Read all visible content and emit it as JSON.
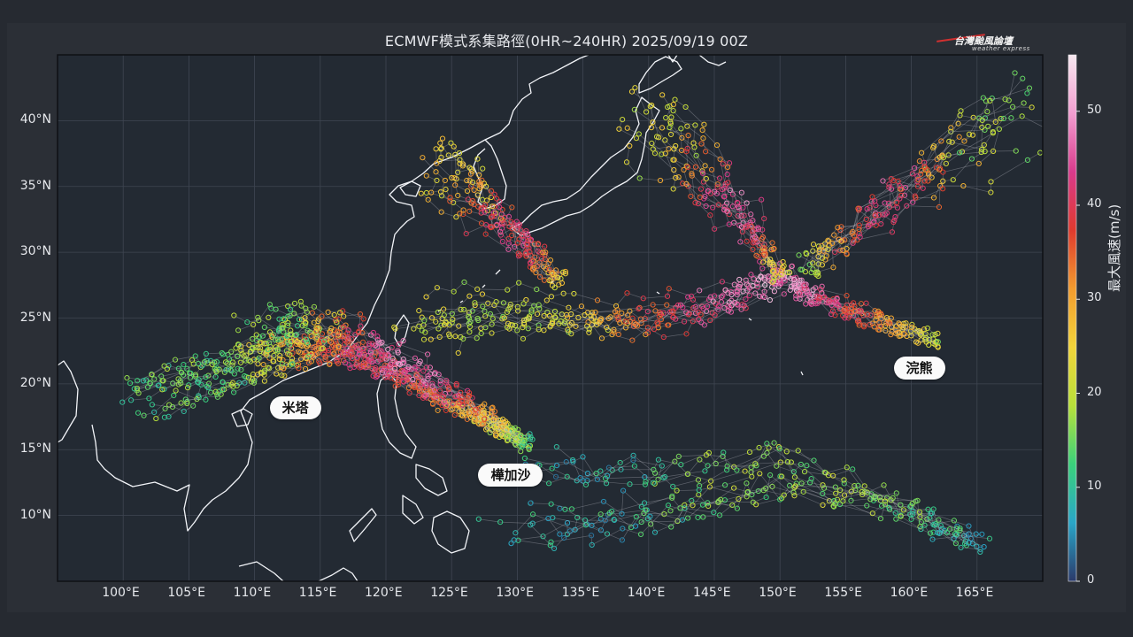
{
  "title": "ECMWF模式系集路徑(0HR~240HR) 2025/09/19 00Z",
  "logo": {
    "name": "台灣颱風論壇",
    "sub": "weather express"
  },
  "colors": {
    "background": "#262a31",
    "map": "#232a33",
    "coast": "#f2f4f8",
    "grid": "#3f4652"
  },
  "map": {
    "lon_range": [
      95,
      170
    ],
    "lat_range": [
      5,
      45
    ],
    "lon_ticks": [
      100,
      105,
      110,
      115,
      120,
      125,
      130,
      135,
      140,
      145,
      150,
      155,
      160,
      165
    ],
    "lat_ticks": [
      10,
      15,
      20,
      25,
      30,
      35,
      40
    ],
    "lon_tick_labels": [
      "100°E",
      "105°E",
      "110°E",
      "115°E",
      "120°E",
      "125°E",
      "130°E",
      "135°E",
      "140°E",
      "145°E",
      "150°E",
      "155°E",
      "160°E",
      "165°E"
    ],
    "lat_tick_labels": [
      "10°N",
      "15°N",
      "20°N",
      "25°N",
      "30°N",
      "35°N",
      "40°N"
    ]
  },
  "colorbar": {
    "title": "最大風速(m/s)",
    "range": [
      0,
      56
    ],
    "ticks": [
      0,
      10,
      20,
      30,
      40,
      50
    ],
    "tick_labels": [
      "0",
      "10",
      "20",
      "30",
      "40",
      "50"
    ],
    "stops": [
      "#2b3a6b",
      "#2aa6c8",
      "#3ad17b",
      "#b8e03a",
      "#f2d43a",
      "#f29b2e",
      "#e03a2e",
      "#d93a8c",
      "#f29ed0",
      "#f7e8f0"
    ]
  },
  "storms": [
    {
      "name": "米塔",
      "lon": 113.1,
      "lat": 18.2,
      "track": [
        [
          130.5,
          15.8
        ],
        [
          127,
          17.5
        ],
        [
          123,
          19.5
        ],
        [
          119.5,
          21.5
        ],
        [
          116,
          22.8
        ],
        [
          112.5,
          22.5
        ],
        [
          109,
          21.3
        ],
        [
          105.5,
          20.5
        ],
        [
          101,
          18.7
        ]
      ],
      "spread": 1.2,
      "wind": [
        14,
        40
      ]
    },
    {
      "name": "樺加沙",
      "lon": 129.5,
      "lat": 13.1,
      "track": [
        [
          130.5,
          15.5
        ],
        [
          126,
          18.5
        ],
        [
          121,
          21.5
        ],
        [
          116.5,
          23.5
        ],
        [
          113,
          23.8
        ],
        [
          110,
          22.5
        ]
      ],
      "spread": 1.5,
      "wind": [
        16,
        46
      ]
    },
    {
      "name": "浣熊",
      "lon": 160.6,
      "lat": 21.2,
      "track": [
        [
          161.5,
          23.4
        ],
        [
          157,
          25
        ],
        [
          153,
          26.5
        ],
        [
          150,
          28.5
        ],
        [
          146,
          26.5
        ],
        [
          140,
          25
        ],
        [
          134,
          25.4
        ],
        [
          128,
          25.8
        ],
        [
          122,
          24.5
        ]
      ],
      "spread": 1.4,
      "wind": [
        20,
        48
      ]
    },
    {
      "name": "",
      "lon": 0,
      "lat": 0,
      "track": [
        [
          150,
          28.5
        ],
        [
          147,
          32.5
        ],
        [
          143,
          36.5
        ],
        [
          139,
          41
        ]
      ],
      "spread": 1.8,
      "wind": [
        22,
        45
      ]
    },
    {
      "name": "",
      "lon": 0,
      "lat": 0,
      "track": [
        [
          152,
          29
        ],
        [
          157,
          33
        ],
        [
          162,
          37
        ],
        [
          168,
          41
        ]
      ],
      "spread": 2.2,
      "wind": [
        18,
        42
      ]
    },
    {
      "name": "",
      "lon": 0,
      "lat": 0,
      "track": [
        [
          165,
          8
        ],
        [
          158,
          11
        ],
        [
          150,
          13.5
        ],
        [
          143,
          12
        ],
        [
          136,
          11
        ],
        [
          129,
          11.5
        ]
      ],
      "spread": 2.2,
      "wind": [
        8,
        18
      ]
    },
    {
      "name": "",
      "lon": 0,
      "lat": 0,
      "track": [
        [
          133,
          28
        ],
        [
          130,
          31
        ],
        [
          127,
          34
        ],
        [
          124,
          37
        ]
      ],
      "spread": 1.6,
      "wind": [
        25,
        42
      ]
    }
  ]
}
